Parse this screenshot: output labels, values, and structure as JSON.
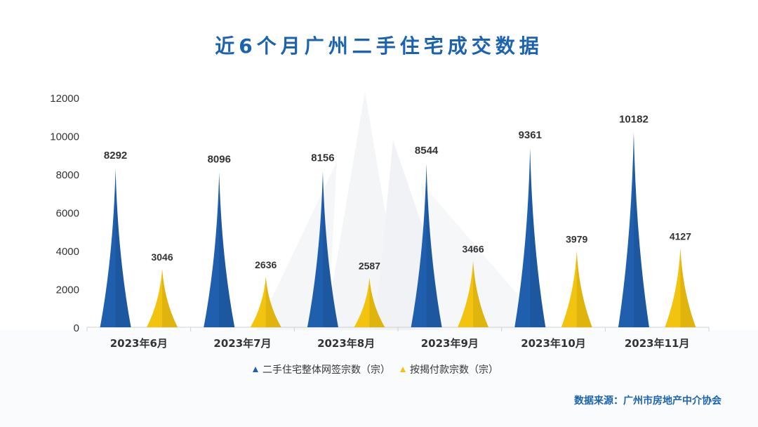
{
  "title": "近6个月广州二手住宅成交数据",
  "source": "数据来源：广州市房地产中介协会",
  "colors": {
    "title": "#1b63b0",
    "series_blue": "#1f5fae",
    "series_yellow": "#f2c40f",
    "axis": "#d0d0d0",
    "label": "#333333"
  },
  "chart_data": {
    "type": "bar",
    "categories": [
      "2023年6月",
      "2023年7月",
      "2023年8月",
      "2023年9月",
      "2023年10月",
      "2023年11月"
    ],
    "series": [
      {
        "name": "二手住宅整体网签宗数（宗）",
        "values": [
          8292,
          8096,
          8156,
          8544,
          9361,
          10182
        ]
      },
      {
        "name": "按揭付款宗数（宗）",
        "values": [
          3046,
          2636,
          2587,
          3466,
          3979,
          4127
        ]
      }
    ],
    "ylim": [
      0,
      12000
    ],
    "yticks": [
      0,
      2000,
      4000,
      6000,
      8000,
      10000,
      12000
    ],
    "xlabel": "",
    "ylabel": "",
    "legend_position": "bottom-center",
    "grid": false,
    "data_labels": true
  }
}
